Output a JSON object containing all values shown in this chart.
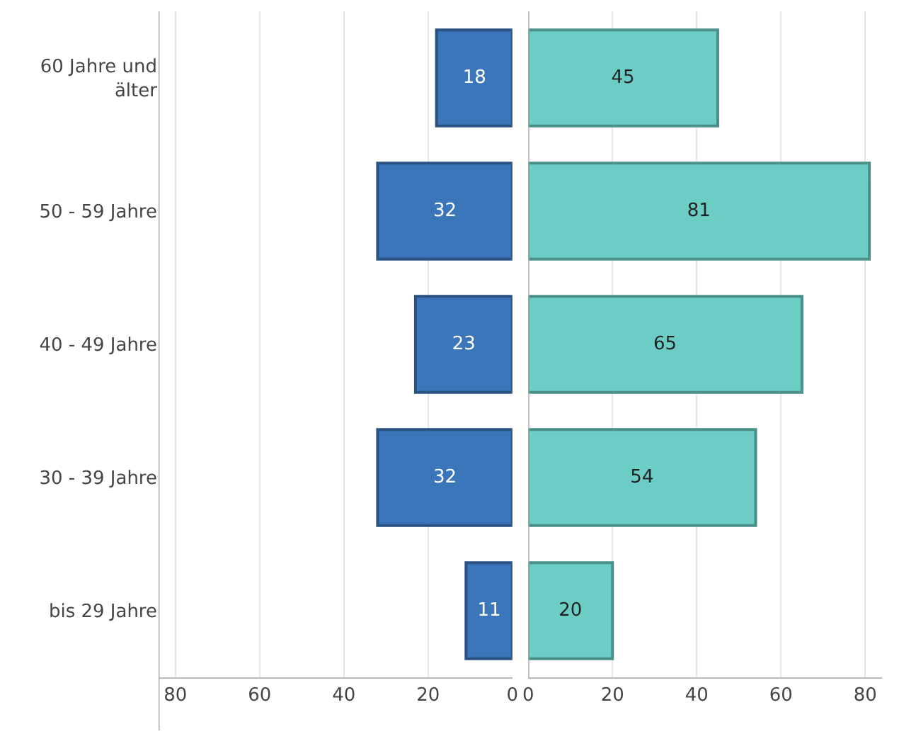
{
  "chart_data": [
    {
      "type": "bar",
      "orientation": "horizontal",
      "categories": [
        "60 Jahre und älter",
        "50 - 59 Jahre",
        "40 - 49 Jahre",
        "30 - 39 Jahre",
        "bis 29 Jahre"
      ],
      "values": [
        18,
        32,
        23,
        32,
        11
      ],
      "color": "#3b76ba",
      "xlim": [
        84,
        0
      ],
      "xticks": [
        80,
        60,
        40,
        20,
        0
      ],
      "grid": "x",
      "data_labels": true
    },
    {
      "type": "bar",
      "orientation": "horizontal",
      "categories": [
        "60 Jahre und älter",
        "50 - 59 Jahre",
        "40 - 49 Jahre",
        "30 - 39 Jahre",
        "bis 29 Jahre"
      ],
      "values": [
        45,
        81,
        65,
        54,
        20
      ],
      "color": "#6ccdc4",
      "xlim": [
        0,
        84
      ],
      "xticks": [
        0,
        20,
        40,
        60,
        80
      ],
      "grid": "x",
      "data_labels": true,
      "tick_labels": "x"
    }
  ]
}
